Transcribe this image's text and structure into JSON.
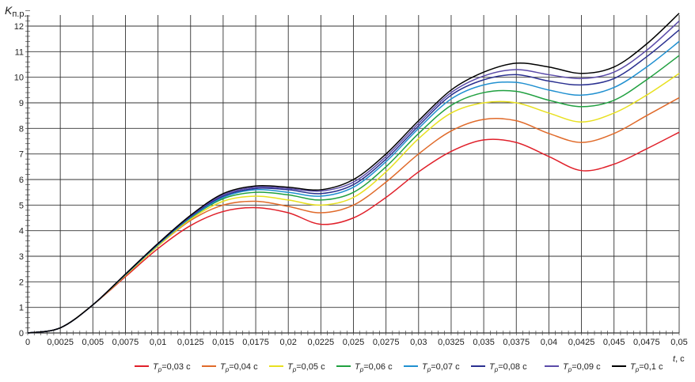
{
  "chart_data": {
    "type": "line",
    "ylabel": "K",
    "ylabel_sub": "п.р.",
    "xlabel_var": "t",
    "xlabel_unit": ", с",
    "xlim": [
      0,
      0.05
    ],
    "ylim": [
      0,
      12
    ],
    "grid": true,
    "legend_placement": "bottom",
    "x": [
      0,
      0.0025,
      0.005,
      0.0075,
      0.01,
      0.0125,
      0.015,
      0.0175,
      0.02,
      0.0225,
      0.025,
      0.0275,
      0.03,
      0.0325,
      0.035,
      0.0375,
      0.04,
      0.0425,
      0.045,
      0.0475,
      0.05
    ],
    "x_tick_labels": [
      "0",
      "0,0025",
      "0,005",
      "0,0075",
      "0,01",
      "0,0125",
      "0,015",
      "0,0175",
      "0,02",
      "0,0225",
      "0,025",
      "0,0275",
      "0,03",
      "0,0325",
      "0,035",
      "0,0375",
      "0,04",
      "0,0425",
      "0,045",
      "0,0475",
      "0,05"
    ],
    "y_tick_labels": [
      "0",
      "1",
      "2",
      "3",
      "4",
      "5",
      "6",
      "7",
      "8",
      "9",
      "10",
      "11",
      "12"
    ],
    "series": [
      {
        "name_var": "T",
        "name_sub": "p",
        "name_rest": "=0,03 с",
        "color": "#e0202a",
        "values": [
          0,
          0.2,
          1.1,
          2.2,
          3.3,
          4.2,
          4.75,
          4.9,
          4.7,
          4.25,
          4.5,
          5.3,
          6.3,
          7.1,
          7.55,
          7.45,
          6.9,
          6.35,
          6.6,
          7.2,
          7.85
        ]
      },
      {
        "name_var": "T",
        "name_sub": "p",
        "name_rest": "=0,04 с",
        "color": "#e06a2a",
        "values": [
          0,
          0.2,
          1.1,
          2.25,
          3.4,
          4.4,
          5.0,
          5.15,
          4.95,
          4.7,
          5.0,
          5.9,
          7.0,
          7.9,
          8.35,
          8.3,
          7.8,
          7.45,
          7.8,
          8.5,
          9.2
        ]
      },
      {
        "name_var": "T",
        "name_sub": "p",
        "name_rest": "=0,05 с",
        "color": "#e8e020",
        "values": [
          0,
          0.2,
          1.1,
          2.25,
          3.4,
          4.45,
          5.15,
          5.35,
          5.2,
          5.0,
          5.3,
          6.3,
          7.6,
          8.6,
          9.0,
          9.0,
          8.6,
          8.25,
          8.6,
          9.3,
          10.15
        ]
      },
      {
        "name_var": "T",
        "name_sub": "p",
        "name_rest": "=0,06 с",
        "color": "#20a040",
        "values": [
          0,
          0.2,
          1.1,
          2.28,
          3.45,
          4.5,
          5.25,
          5.5,
          5.4,
          5.2,
          5.5,
          6.5,
          7.8,
          8.9,
          9.4,
          9.45,
          9.1,
          8.85,
          9.1,
          9.9,
          10.85
        ]
      },
      {
        "name_var": "T",
        "name_sub": "p",
        "name_rest": "=0,07 с",
        "color": "#2090d0",
        "values": [
          0,
          0.2,
          1.1,
          2.28,
          3.45,
          4.52,
          5.3,
          5.6,
          5.5,
          5.35,
          5.7,
          6.7,
          8.0,
          9.15,
          9.7,
          9.8,
          9.5,
          9.3,
          9.6,
          10.4,
          11.4
        ]
      },
      {
        "name_var": "T",
        "name_sub": "p",
        "name_rest": "=0,08 с",
        "color": "#2a3090",
        "values": [
          0,
          0.2,
          1.1,
          2.3,
          3.48,
          4.55,
          5.35,
          5.65,
          5.6,
          5.45,
          5.8,
          6.8,
          8.1,
          9.3,
          9.9,
          10.1,
          9.85,
          9.7,
          9.95,
          10.8,
          11.85
        ]
      },
      {
        "name_var": "T",
        "name_sub": "p",
        "name_rest": "=0,09 с",
        "color": "#5a4aa8",
        "values": [
          0,
          0.2,
          1.1,
          2.3,
          3.5,
          4.58,
          5.4,
          5.7,
          5.65,
          5.55,
          5.9,
          6.9,
          8.2,
          9.4,
          10.05,
          10.3,
          10.1,
          9.95,
          10.2,
          11.05,
          12.2
        ]
      },
      {
        "name_var": "T",
        "name_sub": "p",
        "name_rest": "=0,1 с",
        "color": "#000000",
        "values": [
          0,
          0.2,
          1.1,
          2.3,
          3.5,
          4.6,
          5.45,
          5.75,
          5.7,
          5.6,
          6.0,
          7.0,
          8.3,
          9.5,
          10.2,
          10.55,
          10.4,
          10.15,
          10.4,
          11.3,
          12.5
        ]
      }
    ]
  }
}
